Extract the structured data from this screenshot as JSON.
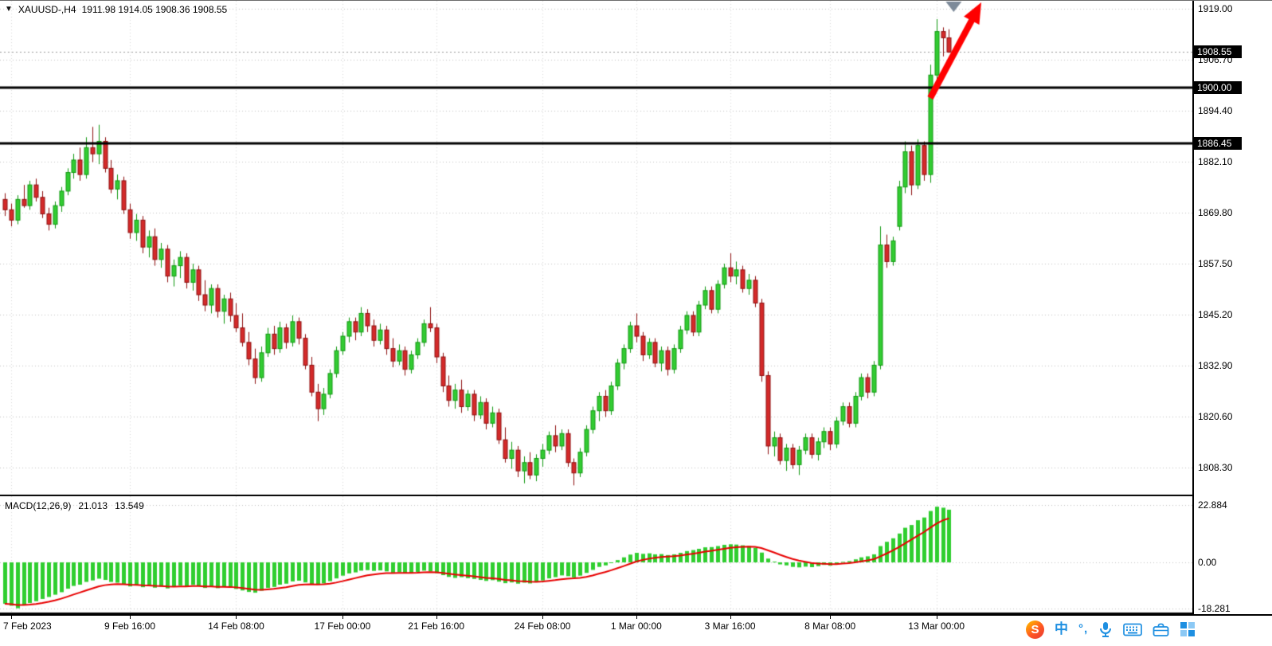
{
  "header": {
    "symbol_marker": "▼",
    "symbol": "XAUUSD-,H4",
    "ohlc": "1911.98 1914.05 1908.36 1908.55"
  },
  "price_axis": {
    "ticks": [
      1919.0,
      1906.7,
      1894.4,
      1882.1,
      1869.8,
      1857.5,
      1845.2,
      1832.9,
      1820.6,
      1808.3
    ],
    "tick_labels": [
      "1919.00",
      "1906.70",
      "1894.40",
      "1882.10",
      "1869.80",
      "1857.50",
      "1845.20",
      "1832.90",
      "1820.60",
      "1808.30"
    ],
    "boxes": [
      {
        "label": "1908.55",
        "price": 1908.55
      },
      {
        "label": "1900.00",
        "price": 1900.0
      },
      {
        "label": "1886.45",
        "price": 1886.45
      }
    ]
  },
  "time_axis": {
    "labels": [
      "7 Feb 2023",
      "9 Feb 16:00",
      "14 Feb 08:00",
      "17 Feb 00:00",
      "21 Feb 16:00",
      "24 Feb 08:00",
      "1 Mar 00:00",
      "3 Mar 16:00",
      "8 Mar 08:00",
      "13 Mar 00:00"
    ],
    "bar_indices": [
      1,
      20,
      37,
      54,
      69,
      86,
      101,
      116,
      132,
      149
    ]
  },
  "macd": {
    "title": "MACD(12,26,9)",
    "value_main": "21.013",
    "value_signal": "13.549",
    "tick_labels": [
      "22.884",
      "0.00",
      "-18.281"
    ],
    "tick_values": [
      22.884,
      0,
      -18.281
    ]
  },
  "annotations": {
    "up_arrow": {
      "color": "#FF0000",
      "meaning": "bullish breakout arrow"
    },
    "bar_marker_color": "#7D8A99"
  },
  "tray": {
    "icons": [
      {
        "name": "sogou-logo-icon",
        "glyph": "S"
      },
      {
        "name": "ime-language-icon",
        "glyph": "中"
      },
      {
        "name": "ime-punctuation-icon",
        "glyph": "°,"
      },
      {
        "name": "microphone-icon"
      },
      {
        "name": "soft-keyboard-icon"
      },
      {
        "name": "toolbox-icon"
      },
      {
        "name": "layout-grid-icon"
      }
    ]
  },
  "colors": {
    "bull": "#33CC33",
    "bull_border": "#119911",
    "bear": "#D42A2A",
    "bear_border": "#8E1010",
    "macd_hist": "#2FCE2F",
    "macd_signal": "#E80000",
    "level_line": "#000000",
    "grid": "#c3c3c3",
    "grid_v": "#d9d9d9",
    "current_price_line": "#9a9a9a",
    "axis_text": "#000000"
  },
  "chart_data": {
    "type": "candlestick",
    "symbol": "XAUUSD",
    "timeframe": "H4",
    "title": "XAUUSD-,H4",
    "current_price": 1908.55,
    "hlines": [
      1900.0,
      1886.45
    ],
    "price_ticks": [
      1919.0,
      1906.7,
      1894.4,
      1882.1,
      1869.8,
      1857.5,
      1845.2,
      1832.9,
      1820.6,
      1808.3
    ],
    "x_tick_labels": [
      "7 Feb 2023",
      "9 Feb 16:00",
      "14 Feb 08:00",
      "17 Feb 00:00",
      "21 Feb 16:00",
      "24 Feb 08:00",
      "1 Mar 00:00",
      "3 Mar 16:00",
      "8 Mar 08:00",
      "13 Mar 00:00"
    ],
    "macd_params": "12,26,9",
    "macd_value": 21.013,
    "macd_signal_value": 13.549,
    "candles": [
      [
        1873.0,
        1874.5,
        1869.0,
        1870.5
      ],
      [
        1870.5,
        1872.0,
        1866.5,
        1868.0
      ],
      [
        1868.0,
        1874.0,
        1867.0,
        1873.0
      ],
      [
        1873.0,
        1876.5,
        1871.0,
        1871.5
      ],
      [
        1871.5,
        1877.5,
        1870.5,
        1876.5
      ],
      [
        1876.5,
        1878.0,
        1872.5,
        1873.5
      ],
      [
        1873.5,
        1875.0,
        1868.5,
        1869.5
      ],
      [
        1869.5,
        1871.0,
        1865.5,
        1867.0
      ],
      [
        1867.0,
        1872.5,
        1866.0,
        1871.5
      ],
      [
        1871.5,
        1876.0,
        1870.0,
        1875.0
      ],
      [
        1875.0,
        1880.5,
        1874.0,
        1879.5
      ],
      [
        1879.5,
        1884.0,
        1878.0,
        1882.5
      ],
      [
        1882.5,
        1885.5,
        1877.5,
        1879.0
      ],
      [
        1879.0,
        1888.0,
        1878.0,
        1885.5
      ],
      [
        1885.5,
        1890.5,
        1882.0,
        1884.0
      ],
      [
        1884.0,
        1891.0,
        1881.5,
        1887.0
      ],
      [
        1887.0,
        1888.0,
        1879.5,
        1880.5
      ],
      [
        1880.5,
        1882.5,
        1874.5,
        1875.5
      ],
      [
        1875.5,
        1879.0,
        1873.0,
        1877.5
      ],
      [
        1877.5,
        1878.5,
        1869.5,
        1870.5
      ],
      [
        1870.5,
        1872.0,
        1863.5,
        1865.0
      ],
      [
        1865.0,
        1869.5,
        1863.0,
        1868.0
      ],
      [
        1868.0,
        1869.0,
        1860.0,
        1861.5
      ],
      [
        1861.5,
        1865.5,
        1859.0,
        1864.0
      ],
      [
        1864.0,
        1866.0,
        1857.0,
        1858.5
      ],
      [
        1858.5,
        1862.5,
        1856.5,
        1861.0
      ],
      [
        1861.0,
        1862.0,
        1853.0,
        1854.5
      ],
      [
        1854.5,
        1858.5,
        1852.0,
        1857.0
      ],
      [
        1857.0,
        1860.5,
        1854.0,
        1859.0
      ],
      [
        1859.0,
        1860.0,
        1851.5,
        1853.0
      ],
      [
        1853.0,
        1857.5,
        1851.0,
        1856.0
      ],
      [
        1856.0,
        1857.0,
        1848.5,
        1850.0
      ],
      [
        1850.0,
        1853.5,
        1846.0,
        1847.5
      ],
      [
        1847.5,
        1852.5,
        1845.5,
        1851.5
      ],
      [
        1851.5,
        1852.5,
        1844.5,
        1846.0
      ],
      [
        1846.0,
        1850.0,
        1843.0,
        1849.0
      ],
      [
        1849.0,
        1850.5,
        1843.5,
        1845.0
      ],
      [
        1845.0,
        1848.0,
        1841.0,
        1842.0
      ],
      [
        1842.0,
        1845.5,
        1837.5,
        1838.5
      ],
      [
        1838.5,
        1841.0,
        1833.0,
        1834.5
      ],
      [
        1834.5,
        1837.0,
        1828.5,
        1830.0
      ],
      [
        1830.0,
        1837.5,
        1829.0,
        1836.0
      ],
      [
        1836.0,
        1842.0,
        1835.0,
        1840.5
      ],
      [
        1840.5,
        1842.5,
        1835.5,
        1837.0
      ],
      [
        1837.0,
        1843.5,
        1836.0,
        1842.0
      ],
      [
        1842.0,
        1843.0,
        1837.0,
        1838.5
      ],
      [
        1838.5,
        1845.0,
        1837.5,
        1843.5
      ],
      [
        1843.5,
        1844.5,
        1838.0,
        1839.5
      ],
      [
        1839.5,
        1840.5,
        1832.0,
        1833.0
      ],
      [
        1833.0,
        1835.0,
        1825.5,
        1826.5
      ],
      [
        1826.5,
        1828.5,
        1819.5,
        1822.5
      ],
      [
        1822.5,
        1827.5,
        1821.0,
        1826.0
      ],
      [
        1826.0,
        1832.0,
        1825.0,
        1831.0
      ],
      [
        1831.0,
        1837.5,
        1830.0,
        1836.5
      ],
      [
        1836.5,
        1841.0,
        1835.5,
        1840.0
      ],
      [
        1840.0,
        1844.5,
        1838.5,
        1843.5
      ],
      [
        1843.5,
        1844.5,
        1839.0,
        1841.0
      ],
      [
        1841.0,
        1847.0,
        1840.0,
        1845.5
      ],
      [
        1845.5,
        1846.5,
        1841.0,
        1842.5
      ],
      [
        1842.5,
        1844.0,
        1837.5,
        1839.0
      ],
      [
        1839.0,
        1843.0,
        1838.0,
        1841.5
      ],
      [
        1841.5,
        1842.5,
        1835.5,
        1837.0
      ],
      [
        1837.0,
        1839.5,
        1832.5,
        1834.0
      ],
      [
        1834.0,
        1838.0,
        1833.0,
        1836.5
      ],
      [
        1836.5,
        1837.5,
        1830.5,
        1832.0
      ],
      [
        1832.0,
        1836.5,
        1831.0,
        1835.5
      ],
      [
        1835.5,
        1839.5,
        1834.5,
        1838.5
      ],
      [
        1838.5,
        1844.0,
        1837.5,
        1843.0
      ],
      [
        1843.0,
        1847.0,
        1841.0,
        1842.0
      ],
      [
        1842.0,
        1843.0,
        1833.5,
        1835.0
      ],
      [
        1835.0,
        1836.0,
        1826.5,
        1828.0
      ],
      [
        1828.0,
        1830.5,
        1823.0,
        1824.5
      ],
      [
        1824.5,
        1828.5,
        1822.5,
        1827.0
      ],
      [
        1827.0,
        1829.5,
        1821.5,
        1823.0
      ],
      [
        1823.0,
        1827.0,
        1822.0,
        1826.0
      ],
      [
        1826.0,
        1827.0,
        1819.5,
        1821.0
      ],
      [
        1821.0,
        1825.5,
        1820.0,
        1824.0
      ],
      [
        1824.0,
        1825.0,
        1817.5,
        1819.0
      ],
      [
        1819.0,
        1823.0,
        1818.0,
        1821.5
      ],
      [
        1821.5,
        1822.5,
        1814.0,
        1815.0
      ],
      [
        1815.0,
        1818.0,
        1809.5,
        1810.5
      ],
      [
        1810.5,
        1814.5,
        1808.0,
        1812.5
      ],
      [
        1812.5,
        1813.5,
        1806.0,
        1807.5
      ],
      [
        1807.5,
        1811.0,
        1804.5,
        1809.5
      ],
      [
        1809.5,
        1812.0,
        1805.5,
        1806.5
      ],
      [
        1806.5,
        1811.5,
        1805.0,
        1810.5
      ],
      [
        1810.5,
        1814.0,
        1808.5,
        1812.5
      ],
      [
        1812.5,
        1817.0,
        1811.5,
        1816.0
      ],
      [
        1816.0,
        1818.5,
        1812.0,
        1813.5
      ],
      [
        1813.5,
        1817.5,
        1812.5,
        1816.5
      ],
      [
        1816.5,
        1817.5,
        1808.5,
        1809.5
      ],
      [
        1809.5,
        1810.5,
        1804.0,
        1807.0
      ],
      [
        1807.0,
        1813.0,
        1806.0,
        1812.0
      ],
      [
        1812.0,
        1818.5,
        1811.0,
        1817.5
      ],
      [
        1817.5,
        1823.0,
        1816.5,
        1822.0
      ],
      [
        1822.0,
        1826.5,
        1819.5,
        1825.5
      ],
      [
        1825.5,
        1827.0,
        1820.5,
        1822.0
      ],
      [
        1822.0,
        1829.0,
        1821.0,
        1828.0
      ],
      [
        1828.0,
        1834.5,
        1827.0,
        1833.5
      ],
      [
        1833.5,
        1838.0,
        1832.0,
        1837.0
      ],
      [
        1837.0,
        1843.5,
        1836.0,
        1842.5
      ],
      [
        1842.5,
        1845.5,
        1838.5,
        1840.0
      ],
      [
        1840.0,
        1841.0,
        1834.0,
        1835.5
      ],
      [
        1835.5,
        1839.5,
        1834.5,
        1838.5
      ],
      [
        1838.5,
        1839.5,
        1832.5,
        1833.5
      ],
      [
        1833.5,
        1837.5,
        1831.5,
        1836.5
      ],
      [
        1836.5,
        1837.5,
        1830.5,
        1832.0
      ],
      [
        1832.0,
        1838.0,
        1831.0,
        1837.0
      ],
      [
        1837.0,
        1842.5,
        1836.0,
        1841.5
      ],
      [
        1841.5,
        1846.0,
        1840.5,
        1845.0
      ],
      [
        1845.0,
        1846.0,
        1840.0,
        1841.0
      ],
      [
        1841.0,
        1848.5,
        1840.0,
        1847.5
      ],
      [
        1847.5,
        1852.0,
        1846.5,
        1851.0
      ],
      [
        1851.0,
        1852.0,
        1845.5,
        1846.5
      ],
      [
        1846.5,
        1853.5,
        1845.5,
        1852.5
      ],
      [
        1852.5,
        1857.5,
        1851.5,
        1856.5
      ],
      [
        1856.5,
        1860.0,
        1853.0,
        1854.5
      ],
      [
        1854.5,
        1858.0,
        1852.5,
        1856.0
      ],
      [
        1856.0,
        1857.0,
        1850.5,
        1851.5
      ],
      [
        1851.5,
        1855.0,
        1850.0,
        1853.5
      ],
      [
        1853.5,
        1854.5,
        1847.0,
        1848.0
      ],
      [
        1848.0,
        1849.0,
        1829.0,
        1830.5
      ],
      [
        1830.5,
        1831.5,
        1811.5,
        1813.5
      ],
      [
        1813.5,
        1817.0,
        1811.0,
        1815.5
      ],
      [
        1815.5,
        1816.5,
        1809.0,
        1810.0
      ],
      [
        1810.0,
        1814.0,
        1807.5,
        1813.0
      ],
      [
        1813.0,
        1814.0,
        1808.0,
        1809.0
      ],
      [
        1809.0,
        1813.5,
        1806.5,
        1812.5
      ],
      [
        1812.5,
        1816.5,
        1811.5,
        1815.5
      ],
      [
        1815.5,
        1816.5,
        1810.5,
        1811.5
      ],
      [
        1811.5,
        1815.5,
        1810.0,
        1814.5
      ],
      [
        1814.5,
        1818.0,
        1813.0,
        1817.0
      ],
      [
        1817.0,
        1818.0,
        1812.5,
        1814.0
      ],
      [
        1814.0,
        1820.5,
        1813.0,
        1819.5
      ],
      [
        1819.5,
        1824.0,
        1818.5,
        1823.0
      ],
      [
        1823.0,
        1824.0,
        1818.0,
        1819.0
      ],
      [
        1819.0,
        1826.5,
        1818.0,
        1825.5
      ],
      [
        1825.5,
        1831.0,
        1824.5,
        1830.0
      ],
      [
        1830.0,
        1831.0,
        1825.0,
        1826.5
      ],
      [
        1826.5,
        1834.0,
        1825.5,
        1833.0
      ],
      [
        1833.0,
        1866.5,
        1832.0,
        1862.0
      ],
      [
        1862.0,
        1864.5,
        1856.5,
        1858.0
      ],
      [
        1858.0,
        1864.0,
        1857.0,
        1863.0
      ],
      [
        1866.5,
        1877.5,
        1865.5,
        1876.0
      ],
      [
        1876.0,
        1887.0,
        1874.5,
        1884.5
      ],
      [
        1884.5,
        1886.0,
        1874.0,
        1876.5
      ],
      [
        1876.5,
        1887.5,
        1875.5,
        1886.0
      ],
      [
        1886.0,
        1887.0,
        1877.5,
        1879.0
      ],
      [
        1879.0,
        1905.5,
        1877.0,
        1903.0
      ],
      [
        1903.0,
        1916.5,
        1900.5,
        1913.5
      ],
      [
        1913.5,
        1914.5,
        1907.5,
        1912.0
      ],
      [
        1911.98,
        1914.05,
        1908.36,
        1908.55
      ]
    ],
    "macd_line": [
      -16.5,
      -17.3,
      -18.3,
      -17.1,
      -16.2,
      -15.5,
      -14.6,
      -13.8,
      -12.9,
      -11.9,
      -10.5,
      -9.4,
      -8.9,
      -7.8,
      -7.2,
      -6.5,
      -7.0,
      -7.8,
      -8.1,
      -8.9,
      -9.6,
      -9.2,
      -9.9,
      -9.4,
      -10.1,
      -9.7,
      -10.4,
      -9.8,
      -9.2,
      -9.6,
      -9.0,
      -9.5,
      -10.2,
      -9.6,
      -10.3,
      -9.7,
      -10.1,
      -10.6,
      -11.2,
      -11.8,
      -12.1,
      -11.3,
      -10.2,
      -9.8,
      -8.9,
      -8.5,
      -7.6,
      -7.3,
      -8.0,
      -8.6,
      -9.0,
      -8.4,
      -7.5,
      -6.4,
      -5.3,
      -4.4,
      -4.0,
      -3.3,
      -3.1,
      -3.4,
      -3.2,
      -3.6,
      -4.1,
      -3.9,
      -4.4,
      -4.2,
      -3.8,
      -3.3,
      -3.6,
      -4.3,
      -5.1,
      -5.8,
      -6.2,
      -5.9,
      -6.3,
      -6.6,
      -7.0,
      -7.4,
      -7.1,
      -7.7,
      -8.3,
      -8.0,
      -8.5,
      -8.1,
      -8.4,
      -7.9,
      -7.2,
      -6.4,
      -5.9,
      -5.2,
      -5.5,
      -6.0,
      -5.3,
      -4.2,
      -3.0,
      -1.8,
      -1.2,
      -0.2,
      0.9,
      2.0,
      3.1,
      3.8,
      3.4,
      3.6,
      3.2,
      3.3,
      2.9,
      3.2,
      3.8,
      4.5,
      4.9,
      5.4,
      6.0,
      6.1,
      6.5,
      7.0,
      7.2,
      7.1,
      6.8,
      6.5,
      5.8,
      3.9,
      1.5,
      0.3,
      -0.8,
      -1.2,
      -1.8,
      -2.0,
      -1.7,
      -1.9,
      -1.5,
      -1.0,
      -1.3,
      -0.6,
      0.2,
      0.5,
      1.2,
      2.0,
      2.4,
      3.2,
      6.5,
      8.2,
      9.6,
      11.5,
      13.8,
      14.9,
      16.8,
      17.9,
      20.5,
      22.2,
      21.8,
      21.013
    ]
  }
}
